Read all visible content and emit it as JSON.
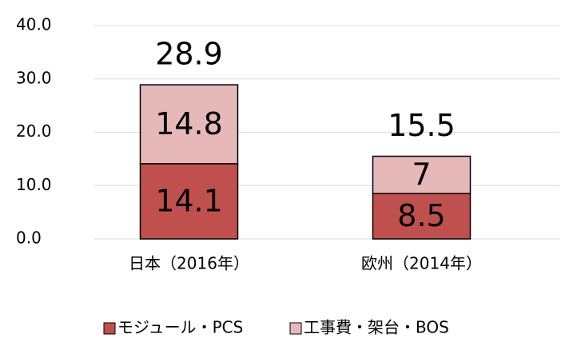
{
  "chart_data": {
    "type": "stacked_bar",
    "categories": [
      "日本（2016年）",
      "欧州（2014年）"
    ],
    "series": [
      {
        "name": "モジュール・PCS",
        "color": "#c0504d",
        "values": [
          14.1,
          8.5
        ]
      },
      {
        "name": "工事費・架台・BOS",
        "color": "#e6b9b8",
        "values": [
          14.8,
          7
        ]
      }
    ],
    "totals": [
      28.9,
      15.5
    ],
    "ylim": [
      0,
      40
    ],
    "yticks": [
      {
        "value": 0,
        "label": "0.0"
      },
      {
        "value": 10,
        "label": "10.0"
      },
      {
        "value": 20,
        "label": "20.0"
      },
      {
        "value": 30,
        "label": "30.0"
      },
      {
        "value": 40,
        "label": "40.0"
      }
    ],
    "grid": true,
    "legend": "bottom"
  }
}
